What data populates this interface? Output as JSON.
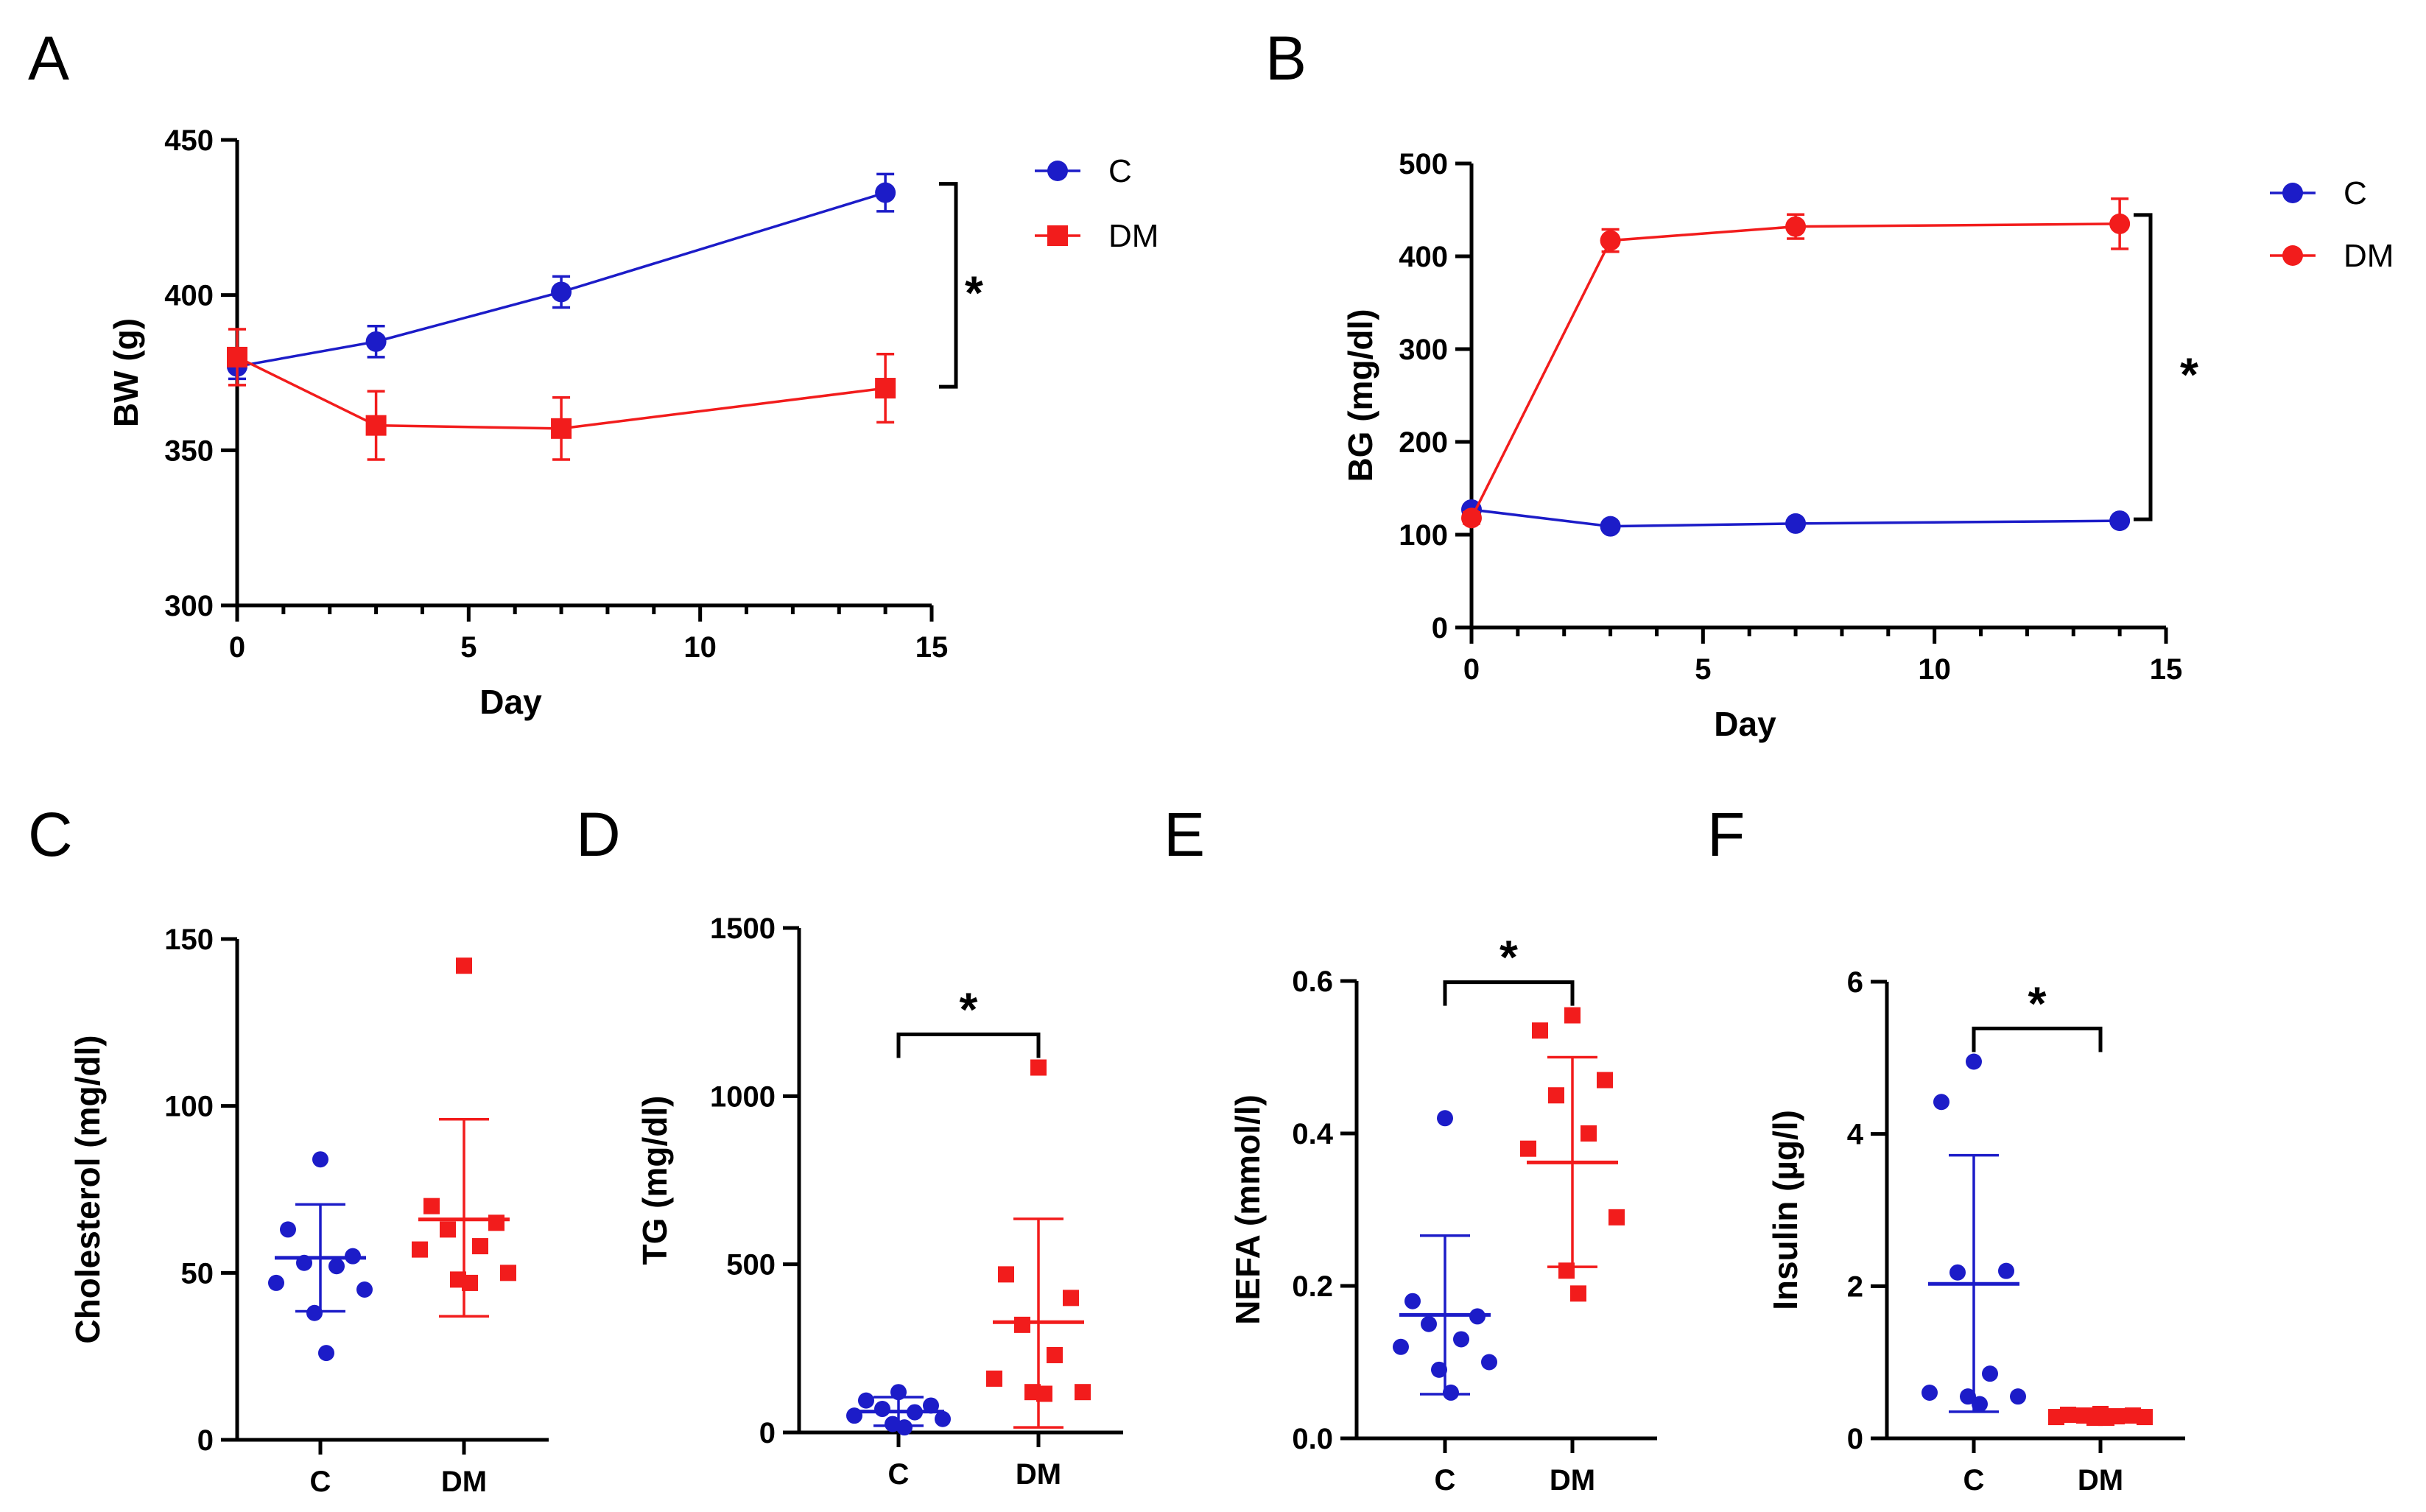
{
  "colors": {
    "control": "#1c1cc8",
    "dm": "#f21c1c",
    "axis": "#000000"
  },
  "chart_data": [
    {
      "id": "A",
      "panel": "A",
      "type": "line",
      "xlabel": "Day",
      "ylabel": "BW (g)",
      "xlim": [
        0,
        15
      ],
      "ylim": [
        300,
        450
      ],
      "xticks": [
        0,
        5,
        10,
        15
      ],
      "yticks": [
        300,
        350,
        400,
        450
      ],
      "series": [
        {
          "name": "C",
          "color": "control",
          "marker": "circle",
          "x": [
            0,
            3,
            7,
            14
          ],
          "y": [
            377,
            385,
            401,
            433
          ],
          "err": [
            4,
            5,
            5,
            6
          ]
        },
        {
          "name": "DM",
          "color": "dm",
          "marker": "square",
          "x": [
            0,
            3,
            7,
            14
          ],
          "y": [
            380,
            358,
            357,
            370
          ],
          "err": [
            9,
            11,
            10,
            11
          ]
        }
      ],
      "significance": "*"
    },
    {
      "id": "B",
      "panel": "B",
      "type": "line",
      "xlabel": "Day",
      "ylabel": "BG (mg/dl)",
      "xlim": [
        0,
        15
      ],
      "ylim": [
        0,
        500
      ],
      "xticks": [
        0,
        5,
        10,
        15
      ],
      "yticks": [
        0,
        100,
        200,
        300,
        400,
        500
      ],
      "series": [
        {
          "name": "C",
          "color": "control",
          "marker": "circle",
          "x": [
            0,
            3,
            7,
            14
          ],
          "y": [
            127,
            109,
            112,
            115
          ],
          "err": [
            5,
            4,
            4,
            4
          ]
        },
        {
          "name": "DM",
          "color": "dm",
          "marker": "circle",
          "x": [
            0,
            3,
            7,
            14
          ],
          "y": [
            118,
            417,
            432,
            435
          ],
          "err": [
            6,
            12,
            13,
            27
          ]
        }
      ],
      "significance": "*"
    },
    {
      "id": "C",
      "panel": "C",
      "type": "scatter",
      "categories": [
        "C",
        "DM"
      ],
      "ylabel": "Cholesterol (mg/dl)",
      "ylim": [
        0,
        150
      ],
      "yticks": [
        0,
        50,
        100,
        150
      ],
      "groups": [
        {
          "name": "C",
          "color": "control",
          "marker": "circle",
          "points": [
            84,
            63,
            55,
            53,
            52,
            47,
            45,
            38,
            26
          ],
          "mean": 54.5,
          "sd_low": 38.5,
          "sd_high": 70.5
        },
        {
          "name": "DM",
          "color": "dm",
          "marker": "square",
          "points": [
            142,
            70,
            65,
            63,
            58,
            57,
            50,
            48,
            47
          ],
          "mean": 66,
          "sd_low": 37,
          "sd_high": 96
        }
      ],
      "significance": ""
    },
    {
      "id": "D",
      "panel": "D",
      "type": "scatter",
      "categories": [
        "C",
        "DM"
      ],
      "ylabel": "TG (mg/dl)",
      "ylim": [
        0,
        1500
      ],
      "yticks": [
        0,
        500,
        1000,
        1500
      ],
      "groups": [
        {
          "name": "C",
          "color": "control",
          "marker": "circle",
          "points": [
            120,
            95,
            80,
            70,
            60,
            50,
            40,
            25,
            15
          ],
          "mean": 62,
          "sd_low": 20,
          "sd_high": 105
        },
        {
          "name": "DM",
          "color": "dm",
          "marker": "square",
          "points": [
            1085,
            470,
            400,
            320,
            230,
            160,
            120,
            120,
            115
          ],
          "mean": 328,
          "sd_low": 15,
          "sd_high": 635
        }
      ],
      "significance": "*"
    },
    {
      "id": "E",
      "panel": "E",
      "type": "scatter",
      "categories": [
        "C",
        "DM"
      ],
      "ylabel": "NEFA (mmol/l)",
      "ylim": [
        0,
        0.6
      ],
      "yticks": [
        0.0,
        0.2,
        0.4,
        0.6
      ],
      "tick_decimals": 1,
      "groups": [
        {
          "name": "C",
          "color": "control",
          "marker": "circle",
          "points": [
            0.42,
            0.18,
            0.16,
            0.15,
            0.13,
            0.12,
            0.1,
            0.09,
            0.06
          ],
          "mean": 0.162,
          "sd_low": 0.058,
          "sd_high": 0.266
        },
        {
          "name": "DM",
          "color": "dm",
          "marker": "square",
          "points": [
            0.555,
            0.535,
            0.47,
            0.45,
            0.4,
            0.38,
            0.29,
            0.22,
            0.19
          ],
          "mean": 0.362,
          "sd_low": 0.225,
          "sd_high": 0.5
        }
      ],
      "significance": "*"
    },
    {
      "id": "F",
      "panel": "F",
      "type": "scatter",
      "categories": [
        "C",
        "DM"
      ],
      "ylabel": "Insulin (µg/l)",
      "ylim": [
        0,
        6
      ],
      "yticks": [
        0,
        2,
        4,
        6
      ],
      "groups": [
        {
          "name": "C",
          "color": "control",
          "marker": "circle",
          "points": [
            4.95,
            4.42,
            2.2,
            2.18,
            0.85,
            0.6,
            0.55,
            0.55,
            0.45
          ],
          "mean": 2.03,
          "sd_low": 0.35,
          "sd_high": 3.72
        },
        {
          "name": "DM",
          "color": "dm",
          "marker": "square",
          "points": [
            0.32,
            0.31,
            0.3,
            0.3,
            0.29,
            0.28,
            0.28,
            0.27,
            0.27
          ],
          "mean": 0.29,
          "sd_low": 0.27,
          "sd_high": 0.31
        }
      ],
      "significance": "*"
    }
  ]
}
